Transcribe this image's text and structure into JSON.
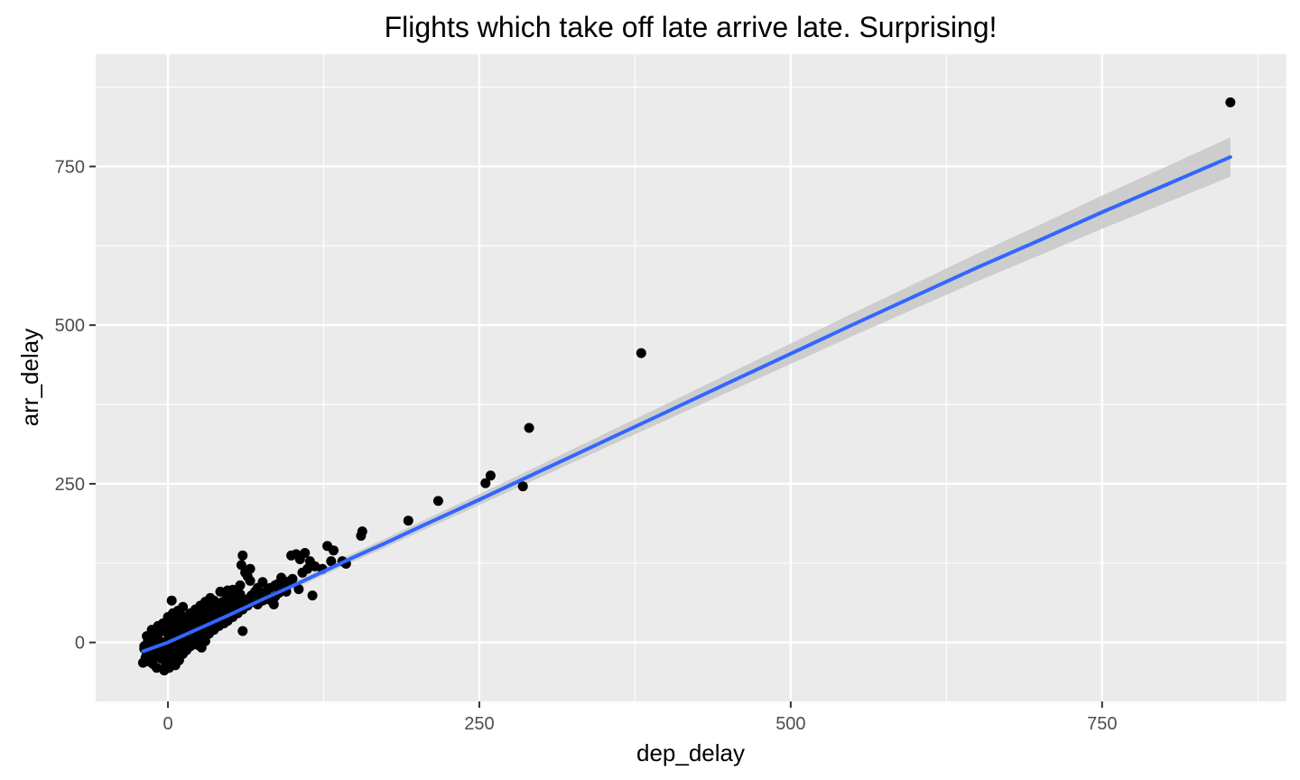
{
  "chart_data": {
    "type": "scatter",
    "title": "Flights which take off late arrive late. Surprising!",
    "xlabel": "dep_delay",
    "ylabel": "arr_delay",
    "xlim": [
      -58,
      898
    ],
    "ylim": [
      -93,
      927
    ],
    "x_ticks": [
      0,
      250,
      500,
      750
    ],
    "y_ticks": [
      0,
      250,
      500,
      750
    ],
    "x_tick_labels": [
      "0",
      "250",
      "500",
      "750"
    ],
    "y_tick_labels": [
      "0",
      "250",
      "500",
      "750"
    ],
    "grid": true,
    "background_color": "#EBEBEB",
    "grid_color": "#FFFFFF",
    "point_color": "#000000",
    "smooth_color": "#3366FF",
    "ribbon_color": "#C8C8C8",
    "points": [
      [
        853,
        851
      ],
      [
        380,
        456
      ],
      [
        290,
        338
      ],
      [
        285,
        246
      ],
      [
        259,
        263
      ],
      [
        255,
        251
      ],
      [
        217,
        223
      ],
      [
        193,
        192
      ],
      [
        156,
        175
      ],
      [
        155,
        168
      ],
      [
        143,
        124
      ],
      [
        140,
        128
      ],
      [
        133,
        145
      ],
      [
        131,
        128
      ],
      [
        128,
        152
      ],
      [
        124,
        116
      ],
      [
        116,
        74
      ],
      [
        114,
        128
      ],
      [
        110,
        141
      ],
      [
        106,
        131
      ],
      [
        105,
        84
      ],
      [
        103,
        139
      ],
      [
        99,
        137
      ],
      [
        95,
        80
      ],
      [
        91,
        102
      ],
      [
        88,
        92
      ],
      [
        86,
        90
      ],
      [
        85,
        60
      ],
      [
        82,
        86
      ],
      [
        78,
        68
      ],
      [
        76,
        95
      ],
      [
        73,
        74
      ],
      [
        70,
        78
      ],
      [
        68,
        72
      ],
      [
        66,
        97
      ],
      [
        66,
        116
      ],
      [
        64,
        104
      ],
      [
        62,
        110
      ],
      [
        60,
        137
      ],
      [
        59,
        122
      ],
      [
        58,
        90
      ],
      [
        57,
        65
      ],
      [
        56,
        78
      ],
      [
        54,
        62
      ],
      [
        52,
        83
      ],
      [
        51,
        56
      ],
      [
        50,
        70
      ],
      [
        48,
        82
      ],
      [
        47,
        76
      ],
      [
        45,
        58
      ],
      [
        44,
        64
      ],
      [
        42,
        80
      ],
      [
        41,
        49
      ],
      [
        40,
        60
      ],
      [
        38,
        42
      ],
      [
        37,
        66
      ],
      [
        36,
        52
      ],
      [
        35,
        44
      ],
      [
        34,
        58
      ],
      [
        33,
        36
      ],
      [
        32,
        48
      ],
      [
        31,
        62
      ],
      [
        30,
        40
      ],
      [
        29,
        32
      ],
      [
        28,
        54
      ],
      [
        27,
        45
      ],
      [
        26,
        38
      ],
      [
        25,
        28
      ],
      [
        24,
        50
      ],
      [
        23,
        22
      ],
      [
        22,
        34
      ],
      [
        21,
        42
      ],
      [
        20,
        26
      ],
      [
        19,
        18
      ],
      [
        18,
        36
      ],
      [
        17,
        24
      ],
      [
        16,
        30
      ],
      [
        15,
        14
      ],
      [
        14,
        20
      ],
      [
        13,
        28
      ],
      [
        12,
        10
      ],
      [
        11,
        16
      ],
      [
        10,
        22
      ],
      [
        9,
        6
      ],
      [
        8,
        12
      ],
      [
        7,
        18
      ],
      [
        6,
        2
      ],
      [
        5,
        8
      ],
      [
        4,
        14
      ],
      [
        3,
        -4
      ],
      [
        2,
        4
      ],
      [
        1,
        10
      ],
      [
        0,
        -6
      ],
      [
        -1,
        2
      ],
      [
        -2,
        -10
      ],
      [
        -3,
        -2
      ],
      [
        -4,
        -14
      ],
      [
        -5,
        0
      ],
      [
        -6,
        -8
      ],
      [
        -7,
        -20
      ],
      [
        -8,
        6
      ],
      [
        -9,
        -12
      ],
      [
        -10,
        -22
      ],
      [
        -11,
        -4
      ],
      [
        -12,
        -26
      ],
      [
        -13,
        -8
      ],
      [
        -14,
        -16
      ],
      [
        -15,
        -30
      ],
      [
        -16,
        2
      ],
      [
        -17,
        -18
      ],
      [
        -18,
        -24
      ],
      [
        -19,
        -10
      ],
      [
        -20,
        -32
      ],
      [
        -14,
        6
      ],
      [
        -10,
        14
      ],
      [
        -6,
        20
      ],
      [
        -2,
        26
      ],
      [
        2,
        32
      ],
      [
        6,
        38
      ],
      [
        10,
        44
      ],
      [
        14,
        40
      ],
      [
        18,
        46
      ],
      [
        22,
        52
      ],
      [
        26,
        58
      ],
      [
        30,
        64
      ],
      [
        34,
        70
      ],
      [
        3,
        66
      ],
      [
        8,
        50
      ],
      [
        12,
        56
      ],
      [
        0,
        40
      ],
      [
        4,
        46
      ],
      [
        -4,
        30
      ],
      [
        -8,
        26
      ],
      [
        1,
        -40
      ],
      [
        4,
        -30
      ],
      [
        7,
        -24
      ],
      [
        10,
        -14
      ],
      [
        13,
        -8
      ],
      [
        16,
        -2
      ],
      [
        19,
        4
      ],
      [
        22,
        10
      ],
      [
        25,
        16
      ],
      [
        28,
        6
      ],
      [
        31,
        12
      ],
      [
        34,
        18
      ],
      [
        37,
        24
      ],
      [
        40,
        30
      ],
      [
        43,
        36
      ],
      [
        46,
        42
      ],
      [
        49,
        48
      ],
      [
        -3,
        -44
      ],
      [
        0,
        -28
      ],
      [
        3,
        -20
      ],
      [
        6,
        -36
      ],
      [
        9,
        -28
      ],
      [
        12,
        -18
      ],
      [
        15,
        -12
      ],
      [
        18,
        -6
      ],
      [
        21,
        0
      ],
      [
        24,
        -4
      ],
      [
        27,
        -8
      ],
      [
        30,
        2
      ],
      [
        20,
        10
      ],
      [
        23,
        16
      ],
      [
        26,
        22
      ],
      [
        29,
        28
      ],
      [
        32,
        24
      ],
      [
        35,
        30
      ],
      [
        38,
        36
      ],
      [
        41,
        42
      ],
      [
        44,
        38
      ],
      [
        47,
        44
      ],
      [
        50,
        50
      ],
      [
        53,
        56
      ],
      [
        55,
        70
      ],
      [
        58,
        76
      ],
      [
        61,
        62
      ],
      [
        64,
        68
      ],
      [
        67,
        74
      ],
      [
        70,
        80
      ],
      [
        72,
        86
      ],
      [
        75,
        70
      ],
      [
        78,
        78
      ],
      [
        80,
        84
      ],
      [
        83,
        66
      ],
      [
        86,
        72
      ],
      [
        89,
        78
      ],
      [
        92,
        84
      ],
      [
        94,
        90
      ],
      [
        97,
        96
      ],
      [
        100,
        100
      ],
      [
        108,
        110
      ],
      [
        112,
        116
      ],
      [
        118,
        120
      ],
      [
        60,
        18
      ],
      [
        -17,
        10
      ],
      [
        -13,
        20
      ],
      [
        9,
        30
      ],
      [
        11,
        34
      ],
      [
        15,
        36
      ],
      [
        19,
        30
      ],
      [
        5,
        24
      ],
      [
        -1,
        16
      ],
      [
        2,
        20
      ],
      [
        7,
        28
      ],
      [
        16,
        14
      ],
      [
        20,
        16
      ],
      [
        24,
        20
      ],
      [
        28,
        24
      ],
      [
        32,
        28
      ],
      [
        36,
        32
      ],
      [
        40,
        38
      ],
      [
        44,
        44
      ],
      [
        48,
        34
      ],
      [
        52,
        40
      ],
      [
        56,
        46
      ],
      [
        60,
        52
      ],
      [
        64,
        58
      ],
      [
        68,
        64
      ],
      [
        72,
        60
      ],
      [
        76,
        66
      ],
      [
        80,
        72
      ],
      [
        -18,
        -30
      ],
      [
        -16,
        -22
      ],
      [
        -12,
        -34
      ],
      [
        -9,
        -40
      ],
      [
        -5,
        -26
      ],
      [
        -2,
        -38
      ],
      [
        1,
        -32
      ],
      [
        5,
        -16
      ],
      [
        8,
        -8
      ],
      [
        11,
        -2
      ],
      [
        14,
        4
      ],
      [
        17,
        10
      ],
      [
        25,
        2
      ],
      [
        29,
        10
      ],
      [
        33,
        14
      ],
      [
        37,
        20
      ],
      [
        41,
        26
      ],
      [
        45,
        30
      ],
      [
        39,
        46
      ],
      [
        43,
        52
      ],
      [
        46,
        58
      ],
      [
        35,
        50
      ],
      [
        27,
        36
      ],
      [
        23,
        30
      ],
      [
        19,
        22
      ],
      [
        13,
        12
      ],
      [
        9,
        4
      ],
      [
        5,
        -2
      ],
      [
        1,
        -10
      ],
      [
        -3,
        -16
      ],
      [
        -7,
        -4
      ],
      [
        -11,
        0
      ],
      [
        -15,
        -10
      ],
      [
        -19,
        -6
      ],
      [
        -12,
        12
      ],
      [
        -8,
        14
      ],
      [
        -4,
        18
      ],
      [
        0,
        22
      ],
      [
        4,
        26
      ],
      [
        8,
        30
      ],
      [
        12,
        34
      ],
      [
        16,
        40
      ],
      [
        20,
        36
      ],
      [
        24,
        40
      ]
    ],
    "smooth": [
      [
        -20,
        -14
      ],
      [
        0,
        0
      ],
      [
        25,
        22
      ],
      [
        50,
        44
      ],
      [
        75,
        67
      ],
      [
        100,
        89
      ],
      [
        125,
        112
      ],
      [
        150,
        135
      ],
      [
        175,
        157
      ],
      [
        200,
        180
      ],
      [
        250,
        225
      ],
      [
        300,
        271
      ],
      [
        350,
        317
      ],
      [
        400,
        363
      ],
      [
        450,
        409
      ],
      [
        500,
        455
      ],
      [
        550,
        501
      ],
      [
        600,
        546
      ],
      [
        650,
        591
      ],
      [
        700,
        634
      ],
      [
        750,
        678
      ],
      [
        800,
        720
      ],
      [
        853,
        765
      ]
    ]
  }
}
